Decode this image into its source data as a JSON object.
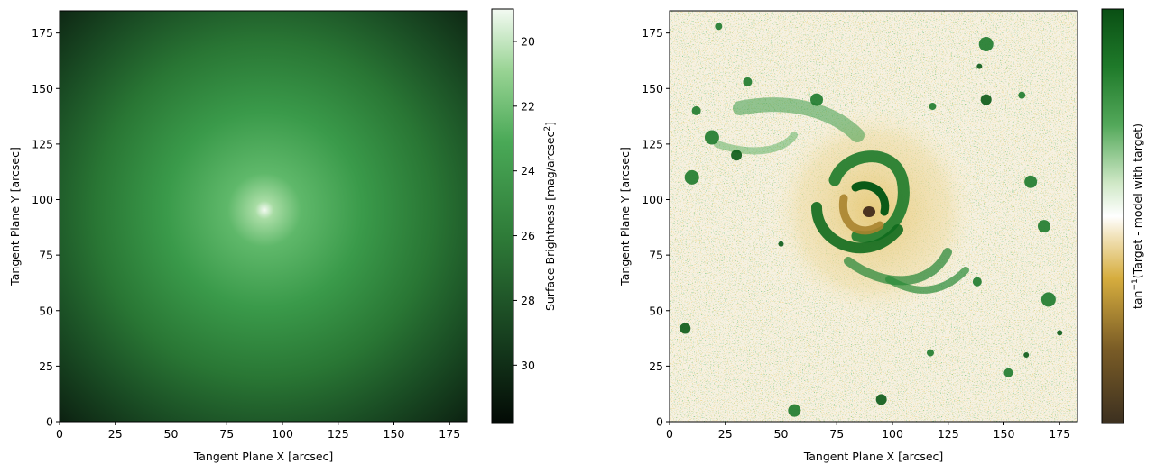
{
  "colors": {
    "green_dark": "#06140a",
    "green_mid": "#2e8b3e",
    "green_light": "#eef8ee",
    "diverging_green": "#0a5a1a",
    "diverging_white": "#ffffff",
    "diverging_gold": "#d9ae3a",
    "diverging_brown": "#3c3020"
  },
  "chart_data": [
    {
      "type": "heatmap",
      "title": "",
      "xlabel": "Tangent Plane X [arcsec]",
      "ylabel": "Tangent Plane Y [arcsec]",
      "xlim": [
        0,
        183
      ],
      "ylim": [
        0,
        185
      ],
      "xticks": [
        0,
        25,
        50,
        75,
        100,
        125,
        150,
        175
      ],
      "yticks": [
        0,
        25,
        50,
        75,
        100,
        125,
        150,
        175
      ],
      "center": {
        "x": 92,
        "y": 95
      },
      "colormap": "green sequential",
      "colorbar": {
        "label_main": "Surface Brightness [mag/arcsec",
        "label_sup": "2",
        "label_end": "]",
        "range": [
          31.8,
          19.0
        ],
        "ticks": [
          20,
          22,
          24,
          26,
          28,
          30
        ],
        "inverted": true
      }
    },
    {
      "type": "heatmap",
      "title": "",
      "xlabel": "Tangent Plane X [arcsec]",
      "ylabel": "Tangent Plane Y [arcsec]",
      "xlim": [
        0,
        183
      ],
      "ylim": [
        0,
        185
      ],
      "xticks": [
        0,
        25,
        50,
        75,
        100,
        125,
        150,
        175
      ],
      "yticks": [
        0,
        25,
        50,
        75,
        100,
        125,
        150,
        175
      ],
      "center": {
        "x": 92,
        "y": 95
      },
      "colormap": "diverging brown-white-green",
      "colorbar": {
        "label_main": "tan",
        "label_sup": "−1",
        "label_end": "(Target - model with target)",
        "ticks": []
      },
      "compact_sources": [
        {
          "x": 139,
          "y": 160
        },
        {
          "x": 158,
          "y": 147
        },
        {
          "x": 35,
          "y": 153
        },
        {
          "x": 95,
          "y": 10
        },
        {
          "x": 56,
          "y": 5
        },
        {
          "x": 170,
          "y": 55
        },
        {
          "x": 175,
          "y": 40
        },
        {
          "x": 22,
          "y": 178
        },
        {
          "x": 12,
          "y": 140
        },
        {
          "x": 142,
          "y": 145
        },
        {
          "x": 168,
          "y": 88
        },
        {
          "x": 19,
          "y": 128
        },
        {
          "x": 160,
          "y": 30
        },
        {
          "x": 117,
          "y": 31
        },
        {
          "x": 138,
          "y": 63
        },
        {
          "x": 30,
          "y": 120
        },
        {
          "x": 66,
          "y": 145
        },
        {
          "x": 10,
          "y": 110
        },
        {
          "x": 50,
          "y": 80
        },
        {
          "x": 118,
          "y": 142
        },
        {
          "x": 152,
          "y": 22
        },
        {
          "x": 7,
          "y": 42
        },
        {
          "x": 162,
          "y": 108
        },
        {
          "x": 142,
          "y": 170
        }
      ]
    }
  ]
}
